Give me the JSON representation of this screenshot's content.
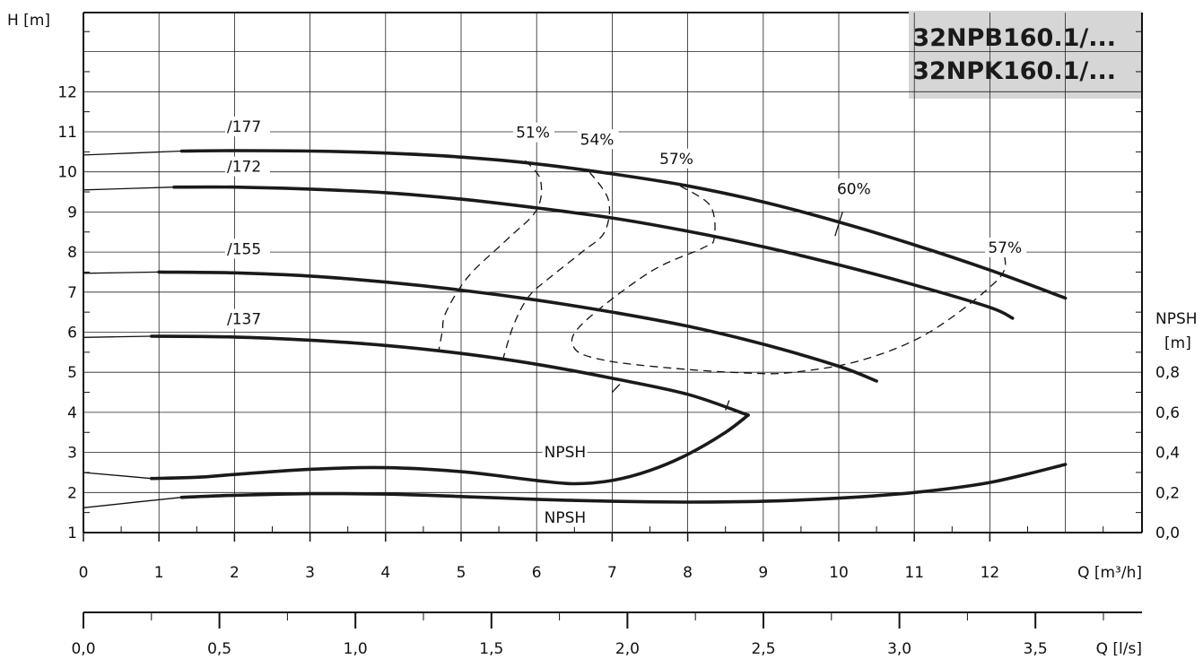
{
  "chart_data": {
    "type": "line",
    "title_lines": [
      "32NPB160.1/...",
      "32NPK160.1/..."
    ],
    "x_axis": {
      "label": "Q [m³/h]",
      "range": [
        0,
        14
      ],
      "ticks": [
        0,
        1,
        2,
        3,
        4,
        5,
        6,
        7,
        8,
        9,
        10,
        11,
        12
      ],
      "tick_labels": [
        "0",
        "1",
        "2",
        "3",
        "4",
        "5",
        "6",
        "7",
        "8",
        "9",
        "10",
        "11",
        "12"
      ]
    },
    "x2_axis": {
      "label": "Q [l/s]",
      "range": [
        0,
        3.888
      ],
      "ticks": [
        0,
        0.5,
        1,
        1.5,
        2,
        2.5,
        3,
        3.5
      ],
      "tick_labels": [
        "0,0",
        "0,5",
        "1,0",
        "1,5",
        "2,0",
        "2,5",
        "3,0",
        "3,5"
      ]
    },
    "y_axis": {
      "label": "H [m]",
      "range": [
        1,
        14
      ],
      "ticks": [
        1,
        2,
        3,
        4,
        5,
        6,
        7,
        8,
        9,
        10,
        11,
        12
      ],
      "tick_labels": [
        "1",
        "2",
        "3",
        "4",
        "5",
        "6",
        "7",
        "8",
        "9",
        "10",
        "11",
        "12"
      ]
    },
    "y2_axis": {
      "label_lines": [
        "NPSH",
        "[m]"
      ],
      "ticks": [
        1,
        2,
        3,
        4,
        5
      ],
      "tick_labels": [
        "0,0",
        "0,2",
        "0,4",
        "0,6",
        "0,8"
      ]
    },
    "grid": true,
    "head_curves": [
      {
        "name": "/177",
        "label_at": [
          1.9,
          11.0
        ],
        "thin_x": [
          0,
          1.3
        ],
        "points": [
          [
            0,
            10.42
          ],
          [
            1.3,
            10.52
          ],
          [
            2,
            10.53
          ],
          [
            3,
            10.52
          ],
          [
            4,
            10.47
          ],
          [
            5,
            10.37
          ],
          [
            6,
            10.2
          ],
          [
            7,
            9.95
          ],
          [
            8,
            9.65
          ],
          [
            9,
            9.25
          ],
          [
            10,
            8.75
          ],
          [
            11,
            8.18
          ],
          [
            12,
            7.55
          ],
          [
            13,
            6.85
          ]
        ]
      },
      {
        "name": "/172",
        "label_at": [
          1.9,
          10.0
        ],
        "thin_x": [
          0,
          1.2
        ],
        "points": [
          [
            0,
            9.55
          ],
          [
            1.2,
            9.62
          ],
          [
            2,
            9.62
          ],
          [
            3,
            9.57
          ],
          [
            4,
            9.48
          ],
          [
            5,
            9.32
          ],
          [
            6,
            9.1
          ],
          [
            7,
            8.85
          ],
          [
            8,
            8.52
          ],
          [
            9,
            8.13
          ],
          [
            10,
            7.68
          ],
          [
            11,
            7.18
          ],
          [
            12,
            6.62
          ],
          [
            12.3,
            6.35
          ]
        ]
      },
      {
        "name": "/155",
        "label_at": [
          1.9,
          7.95
        ],
        "thin_x": [
          0,
          1.0
        ],
        "points": [
          [
            0,
            7.47
          ],
          [
            1,
            7.5
          ],
          [
            2,
            7.48
          ],
          [
            3,
            7.4
          ],
          [
            4,
            7.25
          ],
          [
            5,
            7.05
          ],
          [
            6,
            6.8
          ],
          [
            7,
            6.5
          ],
          [
            8,
            6.15
          ],
          [
            9,
            5.7
          ],
          [
            10,
            5.15
          ],
          [
            10.5,
            4.78
          ]
        ]
      },
      {
        "name": "/137",
        "label_at": [
          1.9,
          6.2
        ],
        "thin_x": [
          0,
          0.9
        ],
        "points": [
          [
            0,
            5.87
          ],
          [
            0.9,
            5.9
          ],
          [
            2,
            5.88
          ],
          [
            3,
            5.8
          ],
          [
            4,
            5.67
          ],
          [
            5,
            5.47
          ],
          [
            6,
            5.2
          ],
          [
            7,
            4.85
          ],
          [
            8,
            4.45
          ],
          [
            8.8,
            3.93
          ]
        ]
      }
    ],
    "efficiency_labels": [
      {
        "text": "51%",
        "at": [
          5.95,
          10.85
        ]
      },
      {
        "text": "54%",
        "at": [
          6.8,
          10.68
        ]
      },
      {
        "text": "57%",
        "at": [
          7.85,
          10.2
        ]
      },
      {
        "text": "60%",
        "at": [
          10.2,
          9.45
        ]
      },
      {
        "text": "57%",
        "at": [
          12.2,
          7.98
        ]
      }
    ],
    "efficiency_contours": [
      {
        "name": "51%",
        "points": [
          [
            5.85,
            10.28
          ],
          [
            6.05,
            9.8
          ],
          [
            6.0,
            9.05
          ],
          [
            5.6,
            8.3
          ],
          [
            5.1,
            7.4
          ],
          [
            4.8,
            6.5
          ],
          [
            4.75,
            6.0
          ],
          [
            4.7,
            5.5
          ]
        ]
      },
      {
        "name": "54%",
        "points": [
          [
            6.7,
            10.0
          ],
          [
            6.95,
            9.3
          ],
          [
            6.9,
            8.5
          ],
          [
            6.6,
            8.0
          ],
          [
            6.2,
            7.4
          ],
          [
            5.9,
            6.9
          ],
          [
            5.7,
            6.2
          ],
          [
            5.55,
            5.3
          ]
        ]
      },
      {
        "name": "57%",
        "points": [
          [
            7.9,
            9.65
          ],
          [
            8.3,
            9.15
          ],
          [
            8.35,
            8.35
          ],
          [
            8.2,
            8.1
          ],
          [
            7.5,
            7.5
          ],
          [
            6.6,
            6.2
          ],
          [
            6.5,
            5.6
          ],
          [
            6.9,
            5.3
          ],
          [
            7.8,
            5.1
          ],
          [
            8.8,
            4.98
          ],
          [
            9.4,
            5.0
          ],
          [
            10.3,
            5.3
          ],
          [
            11.2,
            6.0
          ],
          [
            12.1,
            7.3
          ],
          [
            12.2,
            7.9
          ]
        ]
      }
    ],
    "efficiency_ticks": [
      {
        "a": [
          10.05,
          9.0
        ],
        "b": [
          9.95,
          8.4
        ]
      },
      {
        "a": [
          7.1,
          4.7
        ],
        "b": [
          7.0,
          4.5
        ]
      },
      {
        "a": [
          8.55,
          4.3
        ],
        "b": [
          8.5,
          4.05
        ]
      }
    ],
    "npsh_curves": [
      {
        "name": "NPSH",
        "label_at": [
          6.1,
          2.88
        ],
        "thin_x": [
          0,
          0.9
        ],
        "points": [
          [
            0,
            2.5
          ],
          [
            0.9,
            2.35
          ],
          [
            1.5,
            2.38
          ],
          [
            2,
            2.45
          ],
          [
            3,
            2.58
          ],
          [
            4,
            2.62
          ],
          [
            5,
            2.52
          ],
          [
            6,
            2.3
          ],
          [
            6.5,
            2.22
          ],
          [
            7,
            2.3
          ],
          [
            7.5,
            2.55
          ],
          [
            8,
            2.95
          ],
          [
            8.5,
            3.5
          ],
          [
            8.8,
            3.93
          ]
        ]
      },
      {
        "name": "NPSH",
        "label_at": [
          6.1,
          1.25
        ],
        "thin_x": [
          0,
          1.3
        ],
        "points": [
          [
            0,
            1.62
          ],
          [
            1.3,
            1.88
          ],
          [
            2,
            1.93
          ],
          [
            3,
            1.97
          ],
          [
            4,
            1.96
          ],
          [
            5,
            1.9
          ],
          [
            6,
            1.83
          ],
          [
            7,
            1.78
          ],
          [
            8,
            1.76
          ],
          [
            9,
            1.78
          ],
          [
            10,
            1.86
          ],
          [
            11,
            2.0
          ],
          [
            12,
            2.25
          ],
          [
            13,
            2.7
          ]
        ]
      }
    ]
  }
}
